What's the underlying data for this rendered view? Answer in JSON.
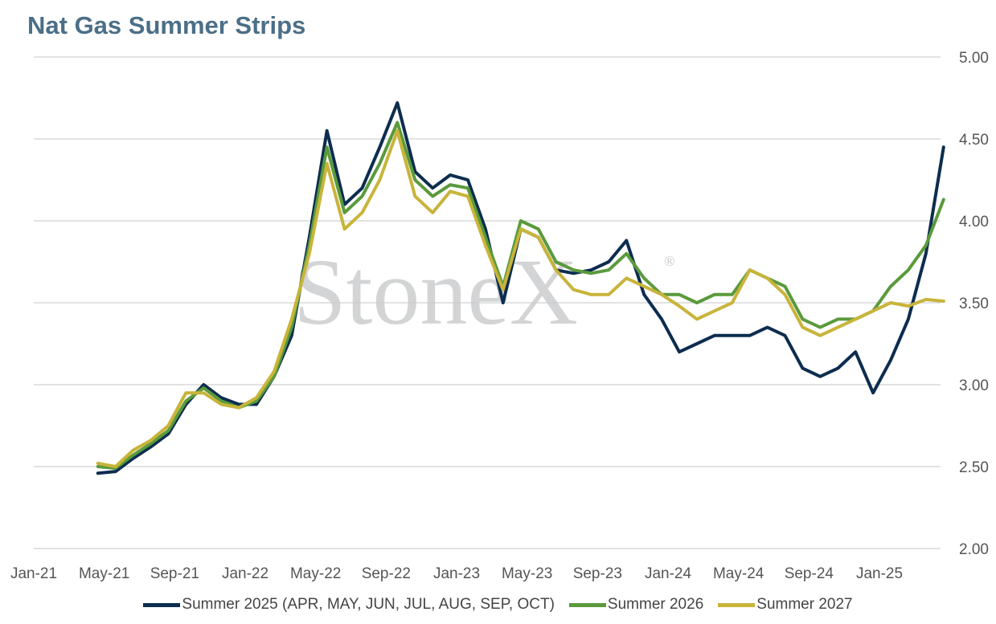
{
  "title": "Nat Gas Summer Strips",
  "watermark": "StoneX",
  "watermark_mark": "®",
  "chart_data": {
    "type": "line",
    "title": "Nat Gas Summer Strips",
    "xlabel": "",
    "ylabel": "",
    "x_ticks": [
      "Jan-21",
      "May-21",
      "Sep-21",
      "Jan-22",
      "May-22",
      "Sep-22",
      "Jan-23",
      "May-23",
      "Sep-23",
      "Jan-24",
      "May-24",
      "Sep-24",
      "Jan-25"
    ],
    "y_ticks": [
      "2.00",
      "2.50",
      "3.00",
      "3.50",
      "4.00",
      "4.50",
      "5.00"
    ],
    "ylim": [
      2.0,
      5.0
    ],
    "xlim": [
      "2021-01",
      "2025-04"
    ],
    "y_axis_side": "right",
    "grid": "horizontal",
    "legend_position": "bottom",
    "x": [
      "2021-04",
      "2021-05",
      "2021-06",
      "2021-07",
      "2021-08",
      "2021-09",
      "2021-10",
      "2021-11",
      "2021-12",
      "2022-01",
      "2022-02",
      "2022-03",
      "2022-04",
      "2022-05",
      "2022-06",
      "2022-07",
      "2022-08",
      "2022-09",
      "2022-10",
      "2022-11",
      "2022-12",
      "2023-01",
      "2023-02",
      "2023-03",
      "2023-04",
      "2023-05",
      "2023-06",
      "2023-07",
      "2023-08",
      "2023-09",
      "2023-10",
      "2023-11",
      "2023-12",
      "2024-01",
      "2024-02",
      "2024-03",
      "2024-04",
      "2024-05",
      "2024-06",
      "2024-07",
      "2024-08",
      "2024-09",
      "2024-10",
      "2024-11",
      "2024-12",
      "2025-01",
      "2025-02",
      "2025-03",
      "2025-04"
    ],
    "series": [
      {
        "name": "Summer 2025 (APR, MAY, JUN, JUL, AUG, SEP, OCT)",
        "color": "#0d2d4f",
        "values": [
          2.46,
          2.47,
          2.55,
          2.62,
          2.7,
          2.88,
          3.0,
          2.92,
          2.88,
          2.88,
          3.05,
          3.3,
          3.9,
          4.55,
          4.1,
          4.2,
          4.45,
          4.72,
          4.3,
          4.2,
          4.28,
          4.25,
          3.95,
          3.5,
          3.95,
          3.9,
          3.7,
          3.68,
          3.7,
          3.75,
          3.88,
          3.55,
          3.4,
          3.2,
          3.25,
          3.3,
          3.3,
          3.3,
          3.35,
          3.3,
          3.1,
          3.05,
          3.1,
          3.2,
          2.95,
          3.15,
          3.4,
          3.8,
          4.45
        ]
      },
      {
        "name": "Summer 2026",
        "color": "#5a9a3c",
        "values": [
          2.5,
          2.49,
          2.57,
          2.64,
          2.72,
          2.9,
          2.98,
          2.9,
          2.86,
          2.9,
          3.05,
          3.35,
          3.85,
          4.45,
          4.05,
          4.15,
          4.35,
          4.6,
          4.25,
          4.15,
          4.22,
          4.2,
          3.9,
          3.6,
          4.0,
          3.95,
          3.75,
          3.7,
          3.68,
          3.7,
          3.8,
          3.65,
          3.55,
          3.55,
          3.5,
          3.55,
          3.55,
          3.7,
          3.65,
          3.6,
          3.4,
          3.35,
          3.4,
          3.4,
          3.45,
          3.6,
          3.7,
          3.85,
          4.13
        ]
      },
      {
        "name": "Summer 2027",
        "color": "#c8b43a",
        "values": [
          2.52,
          2.5,
          2.6,
          2.66,
          2.75,
          2.95,
          2.95,
          2.88,
          2.86,
          2.92,
          3.08,
          3.4,
          3.8,
          4.35,
          3.95,
          4.05,
          4.25,
          4.55,
          4.15,
          4.05,
          4.18,
          4.15,
          3.85,
          3.58,
          3.95,
          3.9,
          3.7,
          3.58,
          3.55,
          3.55,
          3.65,
          3.6,
          3.55,
          3.48,
          3.4,
          3.45,
          3.5,
          3.7,
          3.65,
          3.55,
          3.35,
          3.3,
          3.35,
          3.4,
          3.45,
          3.5,
          3.48,
          3.52,
          3.51
        ]
      }
    ]
  }
}
